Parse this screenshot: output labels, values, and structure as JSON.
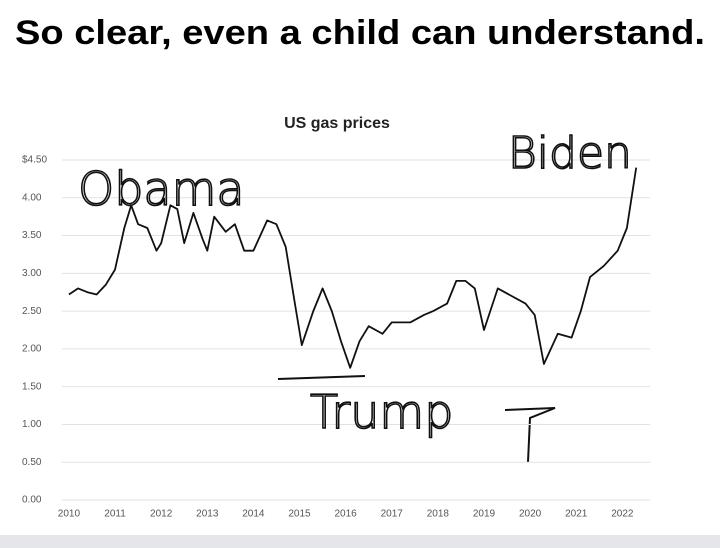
{
  "header": {
    "title": "So clear, even a child can understand."
  },
  "chart_data": {
    "type": "line",
    "title": "US gas prices",
    "x": [
      2010.0,
      2010.2,
      2010.4,
      2010.6,
      2010.8,
      2011.0,
      2011.2,
      2011.35,
      2011.5,
      2011.7,
      2011.9,
      2012.0,
      2012.2,
      2012.35,
      2012.5,
      2012.7,
      2012.9,
      2013.0,
      2013.15,
      2013.4,
      2013.6,
      2013.8,
      2014.0,
      2014.3,
      2014.5,
      2014.7,
      2014.9,
      2015.05,
      2015.3,
      2015.5,
      2015.7,
      2015.9,
      2016.1,
      2016.3,
      2016.5,
      2016.8,
      2017.0,
      2017.4,
      2017.7,
      2017.9,
      2018.2,
      2018.4,
      2018.6,
      2018.8,
      2019.0,
      2019.3,
      2019.6,
      2019.9,
      2020.1,
      2020.3,
      2020.6,
      2020.9,
      2021.1,
      2021.3,
      2021.6,
      2021.9,
      2022.1,
      2022.3
    ],
    "values": [
      2.72,
      2.8,
      2.75,
      2.72,
      2.85,
      3.05,
      3.6,
      3.9,
      3.65,
      3.6,
      3.3,
      3.4,
      3.9,
      3.85,
      3.4,
      3.8,
      3.45,
      3.3,
      3.75,
      3.55,
      3.65,
      3.3,
      3.3,
      3.7,
      3.65,
      3.35,
      2.6,
      2.05,
      2.5,
      2.8,
      2.5,
      2.1,
      1.75,
      2.1,
      2.3,
      2.2,
      2.35,
      2.35,
      2.45,
      2.5,
      2.6,
      2.9,
      2.9,
      2.8,
      2.25,
      2.8,
      2.7,
      2.6,
      2.45,
      1.8,
      2.2,
      2.15,
      2.5,
      2.95,
      3.1,
      3.3,
      3.6,
      4.4
    ],
    "color": "#111111",
    "xlim": [
      2009.85,
      2022.6
    ],
    "xticks": [
      2010,
      2011,
      2012,
      2013,
      2014,
      2015,
      2016,
      2017,
      2018,
      2019,
      2020,
      2021,
      2022
    ],
    "ylim": [
      0,
      4.5
    ],
    "yticks": [
      {
        "value": 0,
        "label": "0.00"
      },
      {
        "value": 0.5,
        "label": "0.50"
      },
      {
        "value": 1,
        "label": "1.00"
      },
      {
        "value": 1.5,
        "label": "1.50"
      },
      {
        "value": 2,
        "label": "2.00"
      },
      {
        "value": 2.5,
        "label": "2.50"
      },
      {
        "value": 3,
        "label": "3.00"
      },
      {
        "value": 3.5,
        "label": "3.50"
      },
      {
        "value": 4,
        "label": "4.00"
      },
      {
        "value": 4.5,
        "label": "$4.50"
      }
    ],
    "grid": true,
    "annotations": [
      "Obama",
      "Trump",
      "Biden"
    ]
  }
}
